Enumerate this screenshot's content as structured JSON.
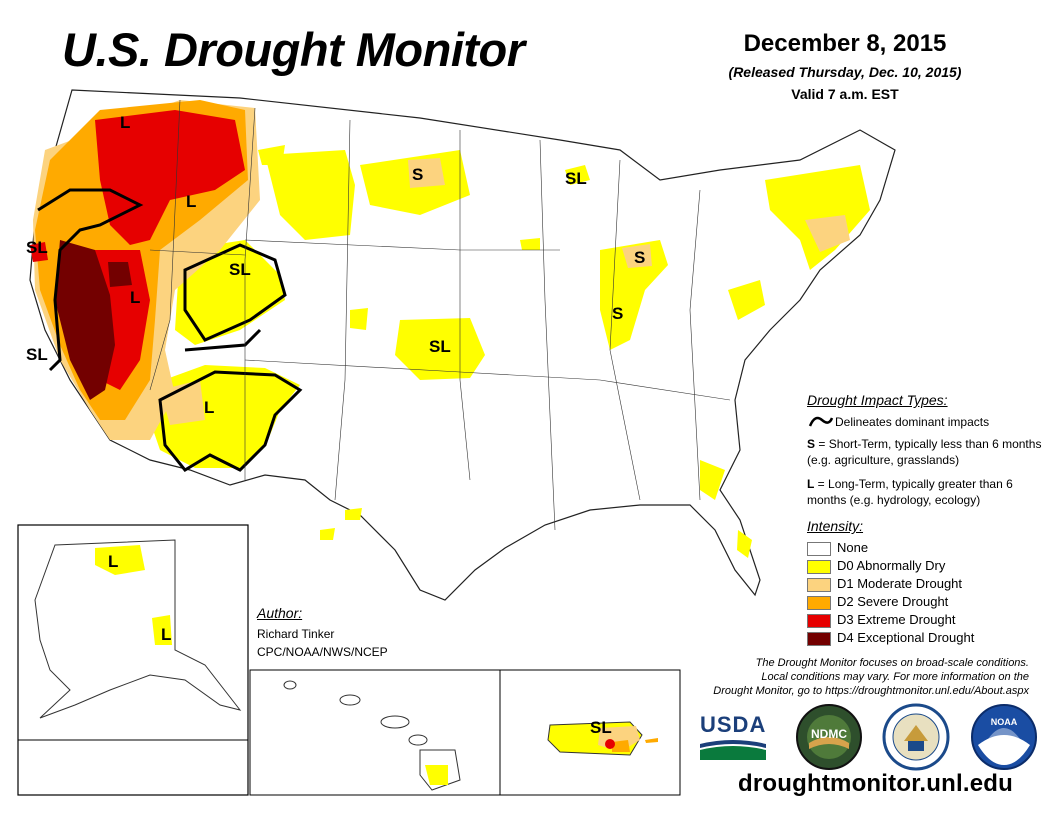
{
  "header": {
    "title": "U.S. Drought Monitor",
    "date": "December 8, 2015",
    "released": "(Released Thursday, Dec. 10, 2015)",
    "valid": "Valid 7 a.m. EST"
  },
  "map_labels": {
    "pnw": "L",
    "idaho": "L",
    "sl_nor_cal": "SL",
    "sl_utah": "SL",
    "central_cal": "L",
    "sl_so_cal": "SL",
    "southwest": "L",
    "dakota": "S",
    "sl_upper_mi": "SL",
    "sl_kansas": "SL",
    "michigan": "S",
    "indiana": "S",
    "alaska_north": "L",
    "alaska_east": "L",
    "puerto_rico": "SL"
  },
  "legend": {
    "impact_heading": "Drought Impact Types:",
    "delineates": "Delineates dominant impacts",
    "short_term_key": "S",
    "short_term": " = Short-Term, typically less than 6 months (e.g. agriculture, grasslands)",
    "long_term_key": "L",
    "long_term": " = Long-Term, typically greater than 6 months (e.g. hydrology, ecology)",
    "intensity_heading": "Intensity:",
    "intensity": [
      {
        "label": "None",
        "color": "#ffffff"
      },
      {
        "label": "D0 Abnormally Dry",
        "color": "#ffff00"
      },
      {
        "label": "D1 Moderate Drought",
        "color": "#fcd37f"
      },
      {
        "label": "D2 Severe Drought",
        "color": "#ffaa00"
      },
      {
        "label": "D3 Extreme Drought",
        "color": "#e60000"
      },
      {
        "label": "D4 Exceptional Drought",
        "color": "#730000"
      }
    ]
  },
  "author": {
    "heading": "Author:",
    "name": "Richard Tinker",
    "org": "CPC/NOAA/NWS/NCEP"
  },
  "footer": {
    "note_line1": "The Drought Monitor focuses on broad-scale conditions.",
    "note_line2": "Local conditions may vary. For more information on the",
    "note_line3": "Drought Monitor, go to https://droughtmonitor.unl.edu/About.aspx",
    "url": "droughtmonitor.unl.edu",
    "logo_usda": "USDA",
    "logo_ndmc": "NDMC",
    "logo_noaa": "NOAA"
  }
}
